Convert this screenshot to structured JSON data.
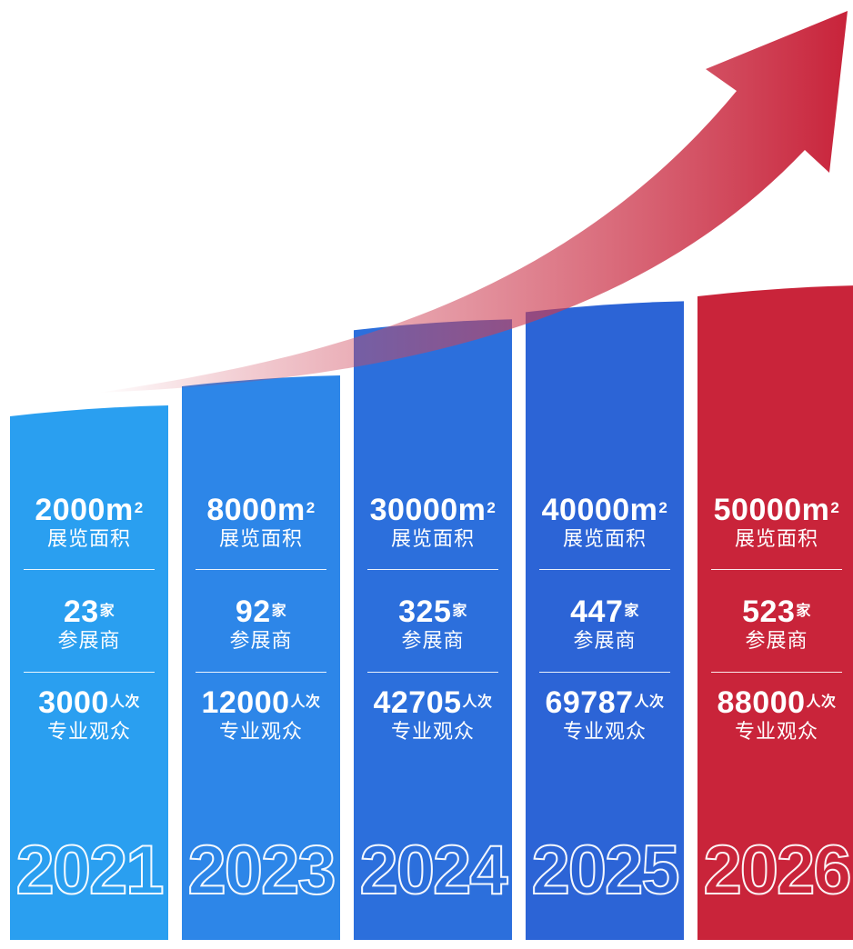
{
  "chart_data": {
    "type": "bar",
    "categories": [
      "2021",
      "2023",
      "2024",
      "2025",
      "2026"
    ],
    "series": [
      {
        "name": "展览面积",
        "unit": "m2",
        "values": [
          2000,
          8000,
          30000,
          40000,
          50000
        ]
      },
      {
        "name": "参展商",
        "unit": "家",
        "values": [
          23,
          92,
          325,
          447,
          523
        ]
      },
      {
        "name": "专业观众",
        "unit": "人次",
        "values": [
          3000,
          12000,
          42705,
          69787,
          88000
        ]
      }
    ],
    "colors": [
      "#2a9ff0",
      "#2d86e8",
      "#2c6fdc",
      "#2c64d6",
      "#c9243a"
    ],
    "arrow_color": "#c8233a"
  },
  "labels": {
    "area_value": [
      "2000",
      "8000",
      "30000",
      "40000",
      "50000"
    ],
    "area_unit": "m",
    "area_sup": "2",
    "area_label": "展览面积",
    "exhibitor_value": [
      "23",
      "92",
      "325",
      "447",
      "523"
    ],
    "exhibitor_unit": "家",
    "exhibitor_label": "参展商",
    "visitor_value": [
      "3000",
      "12000",
      "42705",
      "69787",
      "88000"
    ],
    "visitor_unit": "人次",
    "visitor_label": "专业观众",
    "years": [
      "2021",
      "2023",
      "2024",
      "2025",
      "2026"
    ]
  }
}
